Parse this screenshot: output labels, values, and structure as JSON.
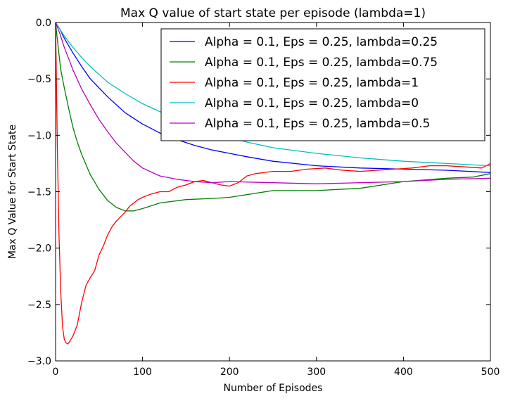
{
  "chart_data": {
    "type": "line",
    "title": "Max Q value of start state per episode (lambda=1)",
    "xlabel": "Number of Episodes",
    "ylabel": "Max Q Value for Start State",
    "xlim": [
      0,
      500
    ],
    "ylim": [
      -3.0,
      0.0
    ],
    "xticks": [
      0,
      100,
      200,
      300,
      400,
      500
    ],
    "xtick_labels": [
      "0",
      "100",
      "200",
      "300",
      "400",
      "500"
    ],
    "yticks": [
      0.0,
      -0.5,
      -1.0,
      -1.5,
      -2.0,
      -2.5,
      -3.0
    ],
    "ytick_labels": [
      "0.0",
      "−0.5",
      "−1.0",
      "−1.5",
      "−2.0",
      "−2.5",
      "−3.0"
    ],
    "grid": false,
    "legend_position": "top-right",
    "series": [
      {
        "name": "Alpha = 0.1, Eps = 0.25, lambda=0.25",
        "color": "#0000ff",
        "x": [
          0,
          5,
          10,
          20,
          30,
          40,
          50,
          60,
          70,
          80,
          90,
          100,
          120,
          140,
          160,
          180,
          200,
          220,
          250,
          300,
          350,
          400,
          450,
          500
        ],
        "y": [
          0.0,
          -0.06,
          -0.14,
          -0.27,
          -0.39,
          -0.5,
          -0.58,
          -0.66,
          -0.73,
          -0.8,
          -0.85,
          -0.9,
          -0.98,
          -1.04,
          -1.09,
          -1.13,
          -1.16,
          -1.19,
          -1.23,
          -1.27,
          -1.29,
          -1.3,
          -1.31,
          -1.33
        ]
      },
      {
        "name": "Alpha = 0.1, Eps = 0.25, lambda=0.75",
        "color": "#008000",
        "x": [
          0,
          3,
          6,
          10,
          15,
          20,
          25,
          30,
          40,
          50,
          60,
          70,
          80,
          90,
          100,
          120,
          150,
          180,
          200,
          250,
          300,
          350,
          400,
          450,
          480,
          500
        ],
        "y": [
          0.0,
          -0.22,
          -0.42,
          -0.58,
          -0.76,
          -0.93,
          -1.06,
          -1.17,
          -1.35,
          -1.48,
          -1.58,
          -1.64,
          -1.67,
          -1.67,
          -1.65,
          -1.6,
          -1.57,
          -1.56,
          -1.55,
          -1.49,
          -1.49,
          -1.47,
          -1.41,
          -1.38,
          -1.37,
          -1.34
        ]
      },
      {
        "name": "Alpha = 0.1, Eps = 0.25, lambda=1",
        "color": "#ff0000",
        "x": [
          0,
          2,
          4,
          6,
          8,
          10,
          12,
          14,
          16,
          20,
          25,
          30,
          35,
          40,
          45,
          50,
          55,
          60,
          65,
          70,
          75,
          80,
          85,
          90,
          95,
          100,
          110,
          120,
          130,
          140,
          150,
          160,
          170,
          180,
          190,
          200,
          210,
          220,
          230,
          250,
          270,
          290,
          310,
          330,
          350,
          370,
          390,
          410,
          430,
          450,
          470,
          490,
          500
        ],
        "y": [
          0.0,
          -1.1,
          -1.9,
          -2.4,
          -2.7,
          -2.81,
          -2.84,
          -2.85,
          -2.83,
          -2.78,
          -2.68,
          -2.48,
          -2.33,
          -2.26,
          -2.2,
          -2.06,
          -1.98,
          -1.88,
          -1.81,
          -1.76,
          -1.72,
          -1.68,
          -1.63,
          -1.6,
          -1.57,
          -1.55,
          -1.52,
          -1.5,
          -1.5,
          -1.46,
          -1.44,
          -1.41,
          -1.4,
          -1.42,
          -1.44,
          -1.45,
          -1.42,
          -1.36,
          -1.34,
          -1.32,
          -1.32,
          -1.3,
          -1.29,
          -1.31,
          -1.32,
          -1.31,
          -1.3,
          -1.29,
          -1.27,
          -1.27,
          -1.28,
          -1.29,
          -1.25
        ]
      },
      {
        "name": "Alpha = 0.1, Eps = 0.25, lambda=0",
        "color": "#00bfbf",
        "x": [
          0,
          10,
          20,
          30,
          40,
          50,
          60,
          80,
          100,
          120,
          140,
          160,
          180,
          200,
          220,
          250,
          300,
          350,
          400,
          450,
          500
        ],
        "y": [
          0.0,
          -0.12,
          -0.22,
          -0.31,
          -0.39,
          -0.46,
          -0.53,
          -0.63,
          -0.72,
          -0.79,
          -0.86,
          -0.92,
          -0.97,
          -1.02,
          -1.06,
          -1.11,
          -1.16,
          -1.2,
          -1.23,
          -1.25,
          -1.27
        ]
      },
      {
        "name": "Alpha = 0.1, Eps = 0.25, lambda=0.5",
        "color": "#bf00bf",
        "x": [
          0,
          5,
          10,
          20,
          30,
          40,
          50,
          60,
          70,
          80,
          90,
          100,
          120,
          140,
          160,
          180,
          200,
          250,
          300,
          350,
          400,
          450,
          500
        ],
        "y": [
          0.0,
          -0.1,
          -0.22,
          -0.42,
          -0.59,
          -0.73,
          -0.86,
          -0.97,
          -1.07,
          -1.15,
          -1.23,
          -1.29,
          -1.36,
          -1.39,
          -1.41,
          -1.42,
          -1.41,
          -1.42,
          -1.43,
          -1.42,
          -1.41,
          -1.39,
          -1.38
        ]
      }
    ]
  }
}
